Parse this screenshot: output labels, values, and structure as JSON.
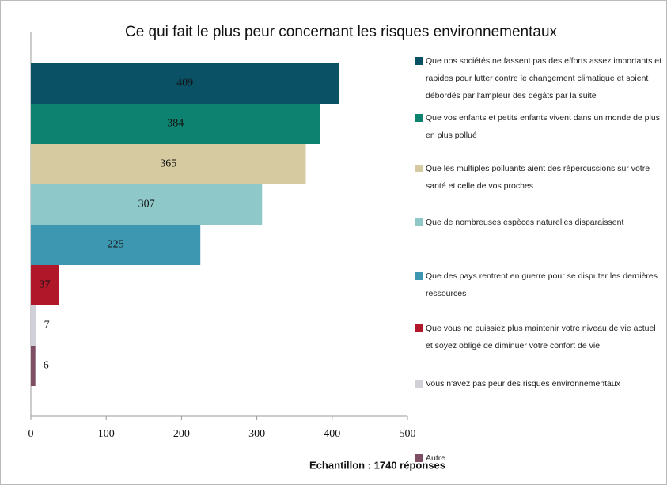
{
  "chart_data": {
    "type": "hbar",
    "title": "Ce qui fait le plus peur concernant les risques environnementaux",
    "xlabel": "Echantillon : 1740 réponses",
    "categories": [
      "Que nos sociétés ne fassent pas des efforts assez importants et rapides pour lutter contre le changement climatique et soient débordés par l'ampleur des dégâts par la suite",
      "Que vos enfants et petits enfants vivent dans un monde de plus en plus pollué",
      "Que les multiples polluants aient des répercussions sur votre santé et celle de vos proches",
      "Que de nombreuses espèces naturelles disparaissent",
      "Que des pays rentrent en guerre pour se disputer les dernières ressources",
      "Que vous ne puissiez plus maintenir votre niveau de vie actuel et soyez obligé de diminuer votre confort de vie",
      "Vous n'avez pas peur des risques environnementaux",
      "Autre"
    ],
    "values": [
      409,
      384,
      365,
      307,
      225,
      37,
      7,
      6
    ],
    "colors": [
      "#0b5166",
      "#0e8270",
      "#d6cba0",
      "#8ec8c8",
      "#3e97b0",
      "#b0182a",
      "#d0d0d8",
      "#7d4e64"
    ],
    "xlim": [
      0,
      500
    ],
    "xticks": [
      0,
      100,
      200,
      300,
      400,
      500
    ],
    "grid": false,
    "legend": "right"
  }
}
